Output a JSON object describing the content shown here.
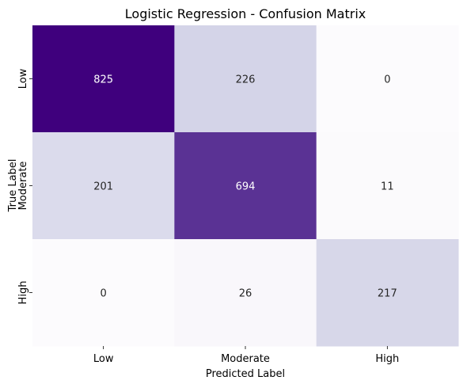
{
  "chart_data": {
    "type": "heatmap",
    "title": "Logistic Regression - Confusion Matrix",
    "xlabel": "Predicted Label",
    "ylabel": "True Label",
    "x_categories": [
      "Low",
      "Moderate",
      "High"
    ],
    "y_categories": [
      "Low",
      "Moderate",
      "High"
    ],
    "values": [
      [
        825,
        226,
        0
      ],
      [
        201,
        694,
        11
      ],
      [
        0,
        26,
        217
      ]
    ],
    "colormap": "Purples",
    "color_range": [
      0,
      825
    ],
    "colorbar": false,
    "grid": false
  }
}
